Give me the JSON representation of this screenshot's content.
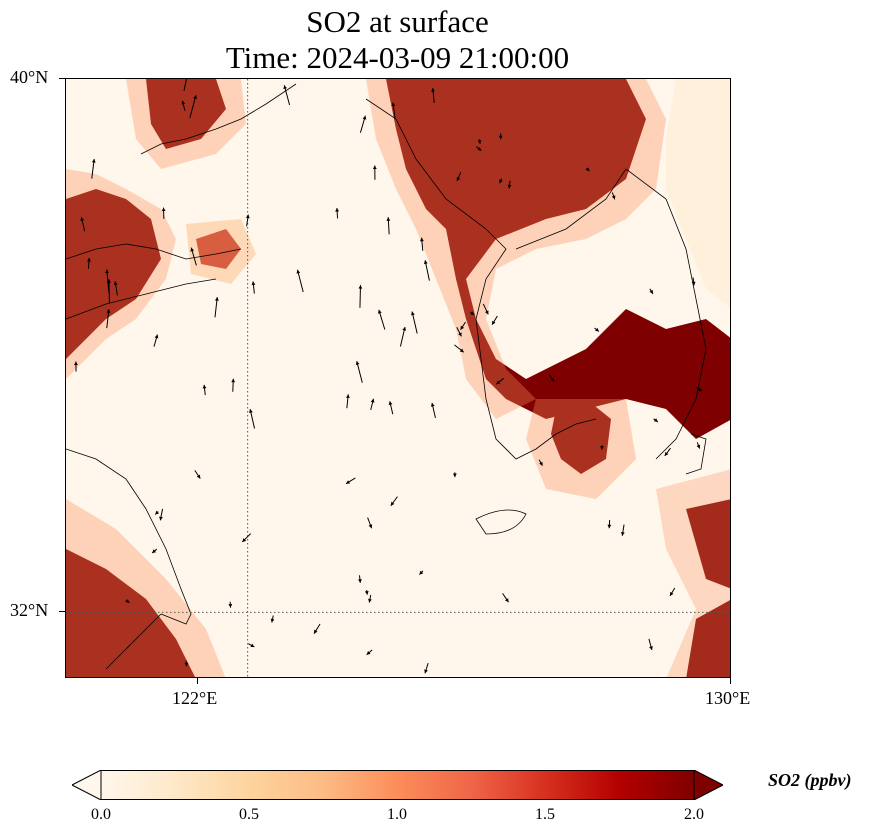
{
  "title_line1": "SO2 at surface",
  "title_line2": "Time: 2024-03-09 21:00:00",
  "map": {
    "lon_range": [
      119,
      130
    ],
    "lat_range": [
      31,
      40
    ],
    "lat_ticks": [
      {
        "value": 40,
        "label": "40°N"
      },
      {
        "value": 32,
        "label": "32°N"
      }
    ],
    "lon_ticks": [
      {
        "value": 122,
        "label": "122°E"
      },
      {
        "value": 130,
        "label": "130°E"
      }
    ],
    "gridlines": {
      "lon": 122,
      "lat": 32,
      "style": "dotted"
    },
    "variable": "SO2",
    "colormap": "OrRd",
    "colors": [
      "#fff7ec",
      "#fee8c8",
      "#fdd49e",
      "#fdbb84",
      "#fc8d59",
      "#ef6548",
      "#d7301f",
      "#b30000",
      "#7f0000"
    ]
  },
  "colorbar": {
    "label": "SO2 (ppbv)",
    "min": 0.0,
    "max": 2.0,
    "ticks": [
      "0.0",
      "0.5",
      "1.0",
      "1.5",
      "2.0"
    ],
    "extend": "both"
  }
}
